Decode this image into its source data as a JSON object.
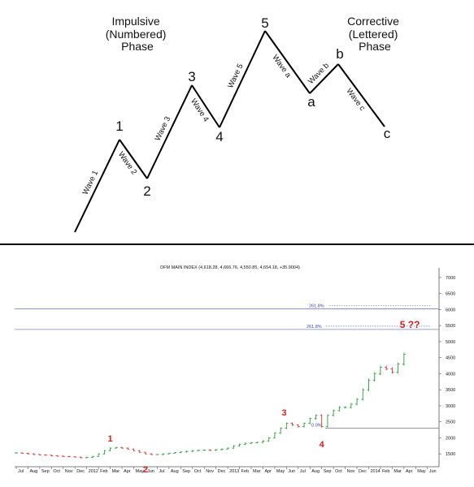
{
  "diagram": {
    "left_phase": [
      "Impulsive",
      "(Numbered)",
      "Phase"
    ],
    "right_phase": [
      "Corrective",
      "(Lettered)",
      "Phase"
    ],
    "points": [
      {
        "label": ""
      },
      {
        "label": "1"
      },
      {
        "label": "2"
      },
      {
        "label": "3"
      },
      {
        "label": "4"
      },
      {
        "label": "5"
      },
      {
        "label": "a"
      },
      {
        "label": "b"
      },
      {
        "label": "c"
      }
    ],
    "waves": [
      "Wave 1",
      "Wave 2",
      "Wave 3",
      "Wave 4",
      "Wave 5",
      "Wave a",
      "Wave b",
      "Wave c"
    ]
  },
  "chart_data": {
    "type": "ohlc",
    "title": "DFM MAIN INDEX (4,618.28, 4,666.76, 4,550.85, 4,654.18, +35.9004)",
    "x_ticks": [
      "Jul",
      "Aug",
      "Sep",
      "Oct",
      "Nov",
      "Dec",
      "2012",
      "Feb",
      "Mar",
      "Apr",
      "May",
      "Jun",
      "Jul",
      "Aug",
      "Sep",
      "Oct",
      "Nov",
      "Dec",
      "2013",
      "Feb",
      "Mar",
      "Apr",
      "May",
      "Jun",
      "Jul",
      "Aug",
      "Sep",
      "Oct",
      "Nov",
      "Dec",
      "2014",
      "Feb",
      "Mar",
      "Apr",
      "May",
      "Jun"
    ],
    "ylim": [
      1100,
      7300
    ],
    "y_ticks": [
      1500,
      2000,
      2500,
      3000,
      3500,
      4000,
      4500,
      5000,
      5500,
      6000,
      6500,
      7000
    ],
    "y_tick_labels": [
      "1500",
      "2000",
      "2500",
      "3000",
      "3500",
      "4000",
      "4500",
      "5000",
      "5500",
      "6000",
      "6500",
      "7000"
    ],
    "fib_levels": [
      {
        "label": "261.8%",
        "value": 6020
      },
      {
        "label": "261.8%",
        "value": 5380
      },
      {
        "label": "0.0%",
        "value": 2300
      }
    ],
    "wave_labels": [
      {
        "label": "1",
        "month": 8.0,
        "value": 1730
      },
      {
        "label": "2",
        "month": 11.0,
        "value": 1380
      },
      {
        "label": "3",
        "month": 22.8,
        "value": 2540
      },
      {
        "label": "4",
        "month": 26.0,
        "value": 2060
      },
      {
        "label": "5 ??",
        "month": 33.5,
        "value": 5430
      }
    ],
    "series": [
      {
        "values": [
          [
            0,
            1530
          ],
          [
            0.5,
            1520
          ],
          [
            1,
            1500
          ],
          [
            1.5,
            1480
          ],
          [
            2,
            1470
          ],
          [
            2.5,
            1460
          ],
          [
            3,
            1440
          ],
          [
            3.5,
            1430
          ],
          [
            4,
            1420
          ],
          [
            4.5,
            1410
          ],
          [
            5,
            1400
          ],
          [
            5.5,
            1380
          ],
          [
            6,
            1390
          ],
          [
            6.5,
            1420
          ],
          [
            7,
            1500
          ],
          [
            7.5,
            1600
          ],
          [
            8,
            1680
          ],
          [
            8.5,
            1700
          ],
          [
            9,
            1680
          ],
          [
            9.5,
            1650
          ],
          [
            10,
            1600
          ],
          [
            10.5,
            1550
          ],
          [
            11,
            1500
          ],
          [
            11.5,
            1480
          ],
          [
            12,
            1480
          ],
          [
            12.5,
            1500
          ],
          [
            13,
            1520
          ],
          [
            13.5,
            1540
          ],
          [
            14,
            1560
          ],
          [
            14.5,
            1580
          ],
          [
            15,
            1600
          ],
          [
            15.5,
            1610
          ],
          [
            16,
            1620
          ],
          [
            16.5,
            1610
          ],
          [
            17,
            1630
          ],
          [
            17.5,
            1650
          ],
          [
            18,
            1680
          ],
          [
            18.5,
            1750
          ],
          [
            19,
            1800
          ],
          [
            19.5,
            1830
          ],
          [
            20,
            1850
          ],
          [
            20.5,
            1860
          ],
          [
            21,
            1900
          ],
          [
            21.5,
            2000
          ],
          [
            22,
            2150
          ],
          [
            22.5,
            2300
          ],
          [
            23,
            2450
          ],
          [
            23.5,
            2400
          ],
          [
            24,
            2350
          ],
          [
            24.5,
            2450
          ],
          [
            25,
            2600
          ],
          [
            25.5,
            2700
          ],
          [
            26,
            2350
          ],
          [
            26.5,
            2700
          ],
          [
            27,
            2850
          ],
          [
            27.5,
            2950
          ],
          [
            28,
            2950
          ],
          [
            28.5,
            3050
          ],
          [
            29,
            3200
          ],
          [
            29.5,
            3500
          ],
          [
            30,
            3800
          ],
          [
            30.5,
            4000
          ],
          [
            31,
            4200
          ],
          [
            31.5,
            4150
          ],
          [
            32,
            4050
          ],
          [
            32.5,
            4300
          ],
          [
            33,
            4600
          ]
        ]
      }
    ]
  }
}
